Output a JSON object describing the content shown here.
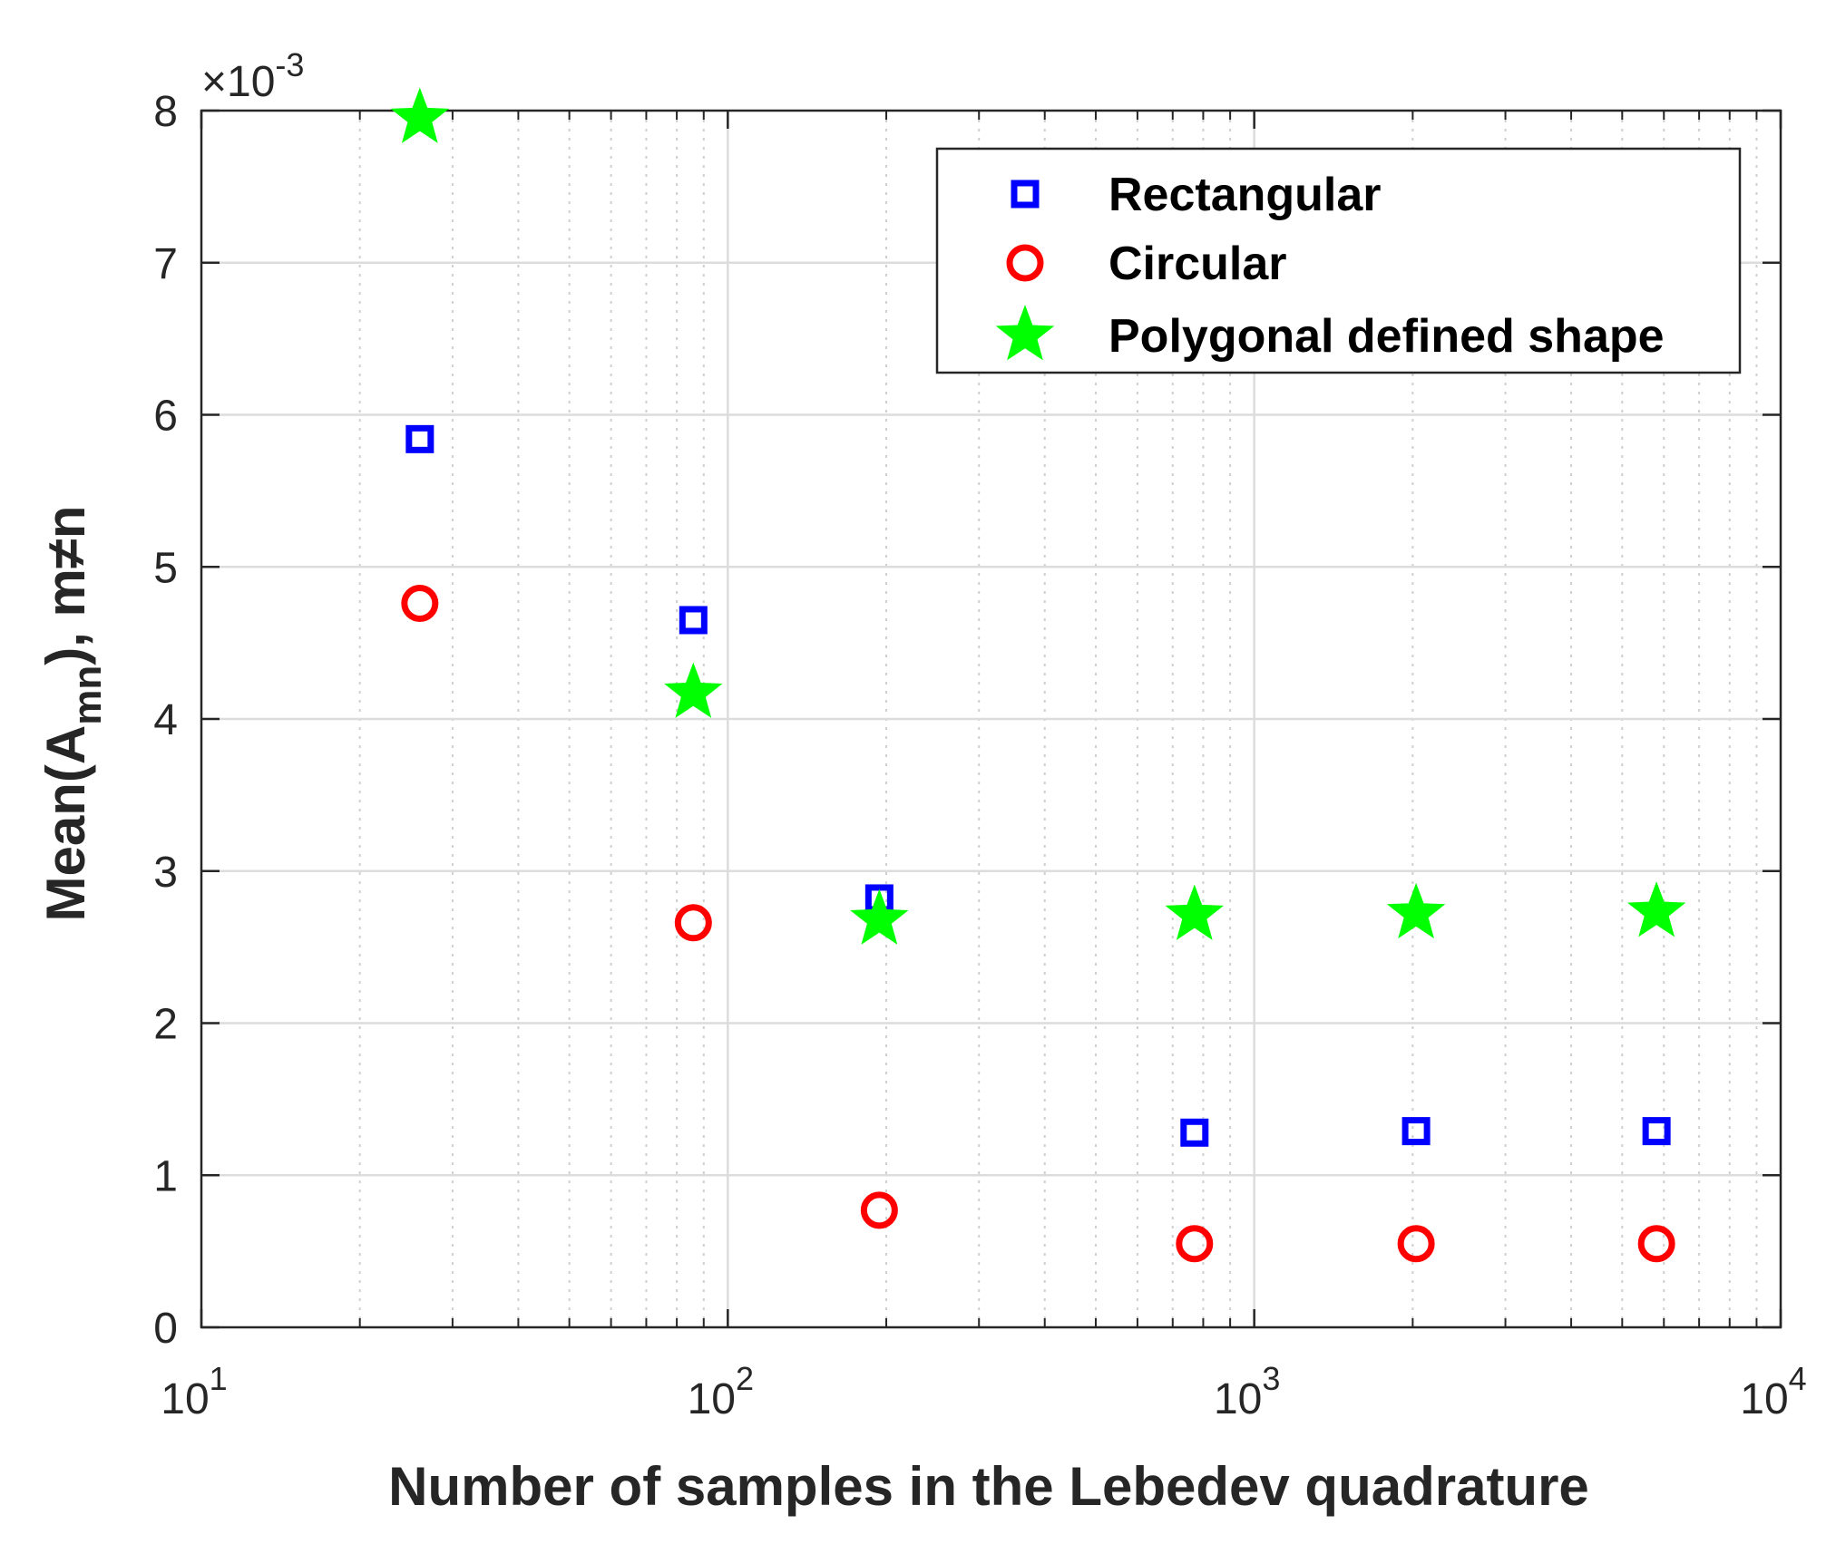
{
  "chart_data": {
    "type": "scatter",
    "xscale": "log",
    "xlim": [
      10,
      10000
    ],
    "ylim": [
      0,
      0.008
    ],
    "grid": true,
    "legend_position": "top-right",
    "xlabel": "Number of samples in the Lebedev quadrature",
    "ylabel": {
      "prefix": "Mean(A",
      "subscript": "mn",
      "suffix": "), m≠n"
    },
    "y_exponent": {
      "multiplier": "×10",
      "power": "-3"
    },
    "x_ticks": [
      {
        "value": 10,
        "base": "10",
        "exp": "1"
      },
      {
        "value": 100,
        "base": "10",
        "exp": "2"
      },
      {
        "value": 1000,
        "base": "10",
        "exp": "3"
      },
      {
        "value": 10000,
        "base": "10",
        "exp": "4"
      }
    ],
    "y_ticks": [
      {
        "value": 0,
        "label": "0"
      },
      {
        "value": 0.001,
        "label": "1"
      },
      {
        "value": 0.002,
        "label": "2"
      },
      {
        "value": 0.003,
        "label": "3"
      },
      {
        "value": 0.004,
        "label": "4"
      },
      {
        "value": 0.005,
        "label": "5"
      },
      {
        "value": 0.006,
        "label": "6"
      },
      {
        "value": 0.007,
        "label": "7"
      },
      {
        "value": 0.008,
        "label": "8"
      }
    ],
    "series": [
      {
        "name": "Rectangular",
        "marker": "square",
        "color": "#0000ff",
        "x": [
          26,
          86,
          194,
          770,
          2030,
          5810
        ],
        "y": [
          0.00584,
          0.00465,
          0.00282,
          0.00128,
          0.00129,
          0.00129
        ]
      },
      {
        "name": "Circular",
        "marker": "circle",
        "color": "#ff0000",
        "x": [
          26,
          86,
          194,
          770,
          2030,
          5810
        ],
        "y": [
          0.00476,
          0.00266,
          0.00077,
          0.00055,
          0.00055,
          0.00055
        ]
      },
      {
        "name": "Polygonal defined shape",
        "marker": "star",
        "color": "#00ff00",
        "x": [
          26,
          86,
          194,
          770,
          2030,
          5810
        ],
        "y": [
          0.00795,
          0.00417,
          0.00268,
          0.00271,
          0.00272,
          0.00273
        ]
      }
    ]
  }
}
